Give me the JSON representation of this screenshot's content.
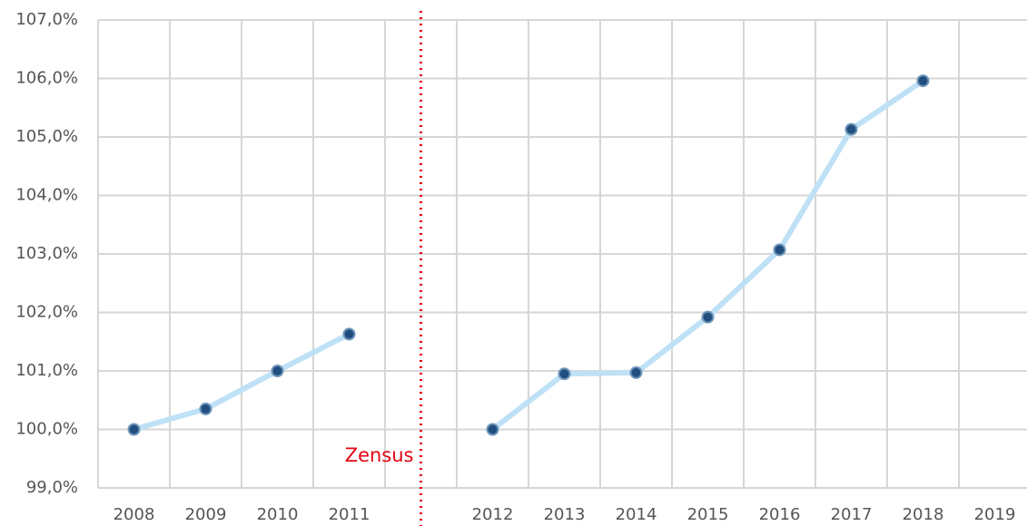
{
  "chart_data": {
    "type": "line",
    "categories": [
      "2008",
      "2009",
      "2010",
      "2011",
      null,
      "2012",
      "2013",
      "2014",
      "2015",
      "2016",
      "2017",
      "2018",
      "2019"
    ],
    "series": [
      {
        "color": "#bfe1f6",
        "marker_color": "#1f4e7f",
        "values": [
          100.0,
          100.35,
          101.0,
          101.63,
          null,
          100.0,
          100.95,
          100.97,
          101.92,
          103.07,
          105.13,
          105.96,
          null
        ]
      }
    ],
    "ylim": [
      99,
      107
    ],
    "yticks": [
      {
        "value": 99,
        "label": "99,0%"
      },
      {
        "value": 100,
        "label": "100,0%"
      },
      {
        "value": 101,
        "label": "101,0%"
      },
      {
        "value": 102,
        "label": "102,0%"
      },
      {
        "value": 103,
        "label": "103,0%"
      },
      {
        "value": 104,
        "label": "104,0%"
      },
      {
        "value": 105,
        "label": "105,0%"
      },
      {
        "value": 106,
        "label": "106,0%"
      },
      {
        "value": 107,
        "label": "107,0%"
      }
    ],
    "grid": true,
    "annotation": {
      "text": "Zensus",
      "color": "#e30613",
      "category_index": 4
    }
  }
}
